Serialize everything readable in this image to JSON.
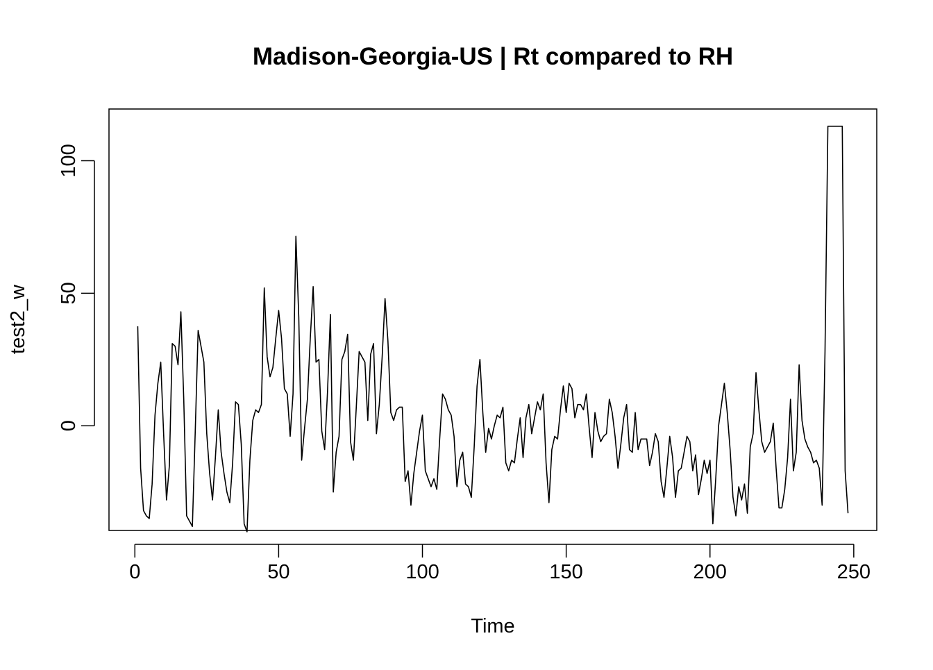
{
  "chart_data": {
    "type": "line",
    "title": "Madison-Georgia-US | Rt compared to RH",
    "xlabel": "Time",
    "ylabel": "test2_w",
    "xlim": [
      -9,
      258
    ],
    "ylim": [
      -39.5,
      119.5
    ],
    "x_ticks": [
      0,
      50,
      100,
      150,
      200,
      250
    ],
    "y_ticks": [
      0,
      50,
      100
    ],
    "x_tick_labels": [
      "0",
      "50",
      "100",
      "150",
      "200",
      "250"
    ],
    "y_tick_labels": [
      "0",
      "50",
      "100"
    ],
    "series": [
      {
        "name": "test2_w",
        "color": "#000000",
        "x_start": 1,
        "x_step": 1,
        "values": [
          37.5,
          -16,
          -32,
          -34,
          -35,
          -22,
          4,
          16,
          24,
          -3,
          -28,
          -15,
          31,
          30,
          23,
          43,
          10,
          -34,
          -36,
          -38,
          -2,
          36,
          30,
          24,
          -3,
          -18,
          -28,
          -12,
          6,
          -10,
          -18,
          -25,
          -29,
          -14,
          9,
          8,
          -7,
          -37,
          -40,
          -13,
          2,
          6,
          5,
          8,
          52,
          26,
          18.5,
          22,
          33,
          43.5,
          33,
          14,
          12,
          -4,
          12,
          71.5,
          41,
          -13,
          -1,
          10,
          33,
          52.5,
          24,
          25,
          -2,
          -9,
          13,
          42,
          -25,
          -10,
          -4,
          25,
          28,
          34.5,
          -6,
          -13,
          7,
          28,
          26,
          24,
          2,
          27,
          31,
          -3,
          8,
          26,
          48,
          32,
          5,
          2,
          6,
          7,
          7,
          -21,
          -17,
          -30,
          -18,
          -10,
          -2,
          4,
          -17,
          -20,
          -23,
          -20,
          -24,
          -5,
          12,
          10,
          6,
          4,
          -4,
          -23,
          -13,
          -10,
          -22,
          -23,
          -27,
          -8,
          15,
          25,
          5,
          -10,
          -1,
          -5,
          0,
          4,
          3,
          7,
          -14,
          -17,
          -13,
          -14,
          -5,
          3,
          -12,
          3,
          8,
          -3,
          3,
          9,
          6,
          12,
          -14,
          -29,
          -9,
          -4,
          -5,
          6,
          15,
          5,
          16,
          14,
          3,
          8,
          8,
          6,
          12,
          -1,
          -12,
          5,
          -2,
          -6,
          -4,
          -3,
          10,
          5,
          -4,
          -16,
          -7,
          3,
          8,
          -9,
          -10,
          5,
          -9,
          -5,
          -5,
          -5,
          -15,
          -10,
          -3,
          -6,
          -21,
          -27,
          -16,
          -4,
          -12,
          -27,
          -17,
          -16,
          -10,
          -4,
          -6,
          -17,
          -11,
          -26,
          -20,
          -13,
          -18,
          -13,
          -37,
          -20,
          0,
          8,
          16,
          5,
          -9,
          -27,
          -34,
          -23,
          -28,
          -22,
          -33,
          -8,
          -3,
          20,
          6,
          -6,
          -10,
          -8,
          -6,
          1,
          -16,
          -31,
          -31,
          -24,
          -12,
          10,
          -17,
          -10,
          23,
          2,
          -5,
          -8,
          -10,
          -14,
          -13,
          -16,
          -30,
          28,
          113,
          113,
          113,
          113,
          113,
          113,
          -17,
          -33
        ]
      }
    ]
  }
}
